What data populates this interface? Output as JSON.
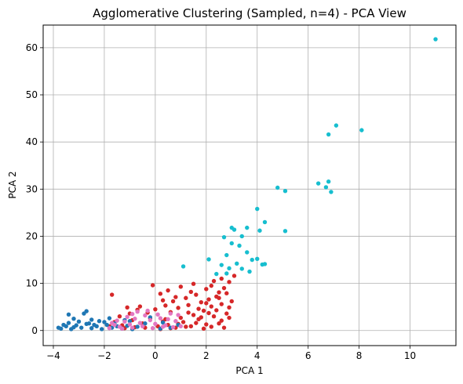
{
  "chart_data": {
    "type": "scatter",
    "title": "Agglomerative Clustering (Sampled, n=4) - PCA View",
    "xlabel": "PCA 1",
    "ylabel": "PCA 2",
    "xlim": [
      -4.4,
      11.8
    ],
    "ylim": [
      -3.2,
      64.8
    ],
    "xticks": [
      -4,
      -2,
      0,
      2,
      4,
      6,
      8,
      10
    ],
    "yticks": [
      0,
      10,
      20,
      30,
      40,
      50,
      60
    ],
    "grid": true,
    "series": [
      {
        "color": "#d62728",
        "points": [
          [
            0.2,
            0.3
          ],
          [
            0.5,
            1.2
          ],
          [
            0.8,
            0.6
          ],
          [
            1.1,
            1.8
          ],
          [
            1.4,
            0.9
          ],
          [
            1.7,
            2.4
          ],
          [
            2.0,
            1.3
          ],
          [
            2.3,
            3.0
          ],
          [
            1.9,
            4.2
          ],
          [
            2.6,
            2.1
          ],
          [
            2.8,
            3.6
          ],
          [
            2.2,
            5.1
          ],
          [
            1.5,
            3.3
          ],
          [
            1.0,
            2.7
          ],
          [
            0.6,
            3.9
          ],
          [
            0.3,
            1.9
          ],
          [
            -0.2,
            2.6
          ],
          [
            -0.5,
            1.5
          ],
          [
            -0.9,
            2.2
          ],
          [
            -1.3,
            1.1
          ],
          [
            -1.6,
            1.8
          ],
          [
            -1.8,
            0.9
          ],
          [
            0.9,
            4.8
          ],
          [
            1.3,
            5.4
          ],
          [
            1.8,
            6.0
          ],
          [
            2.1,
            6.6
          ],
          [
            2.4,
            7.2
          ],
          [
            2.5,
            8.1
          ],
          [
            2.7,
            9.0
          ],
          [
            2.9,
            10.3
          ],
          [
            3.1,
            11.6
          ],
          [
            2.6,
            11.0
          ],
          [
            2.3,
            10.5
          ],
          [
            2.0,
            8.8
          ],
          [
            1.6,
            7.6
          ],
          [
            1.2,
            6.9
          ],
          [
            0.7,
            6.2
          ],
          [
            0.4,
            5.3
          ],
          [
            0.0,
            4.5
          ],
          [
            -0.3,
            3.8
          ],
          [
            -0.7,
            4.4
          ],
          [
            -1.0,
            3.6
          ],
          [
            -1.4,
            3.0
          ],
          [
            -1.7,
            7.6
          ],
          [
            -0.1,
            9.6
          ],
          [
            0.2,
            7.8
          ],
          [
            0.5,
            8.5
          ],
          [
            1.0,
            9.3
          ],
          [
            1.5,
            9.9
          ],
          [
            2.2,
            9.5
          ],
          [
            2.8,
            7.9
          ],
          [
            3.0,
            6.2
          ],
          [
            2.9,
            4.9
          ],
          [
            2.6,
            5.6
          ],
          [
            2.4,
            4.3
          ],
          [
            2.1,
            3.7
          ],
          [
            1.8,
            2.8
          ],
          [
            1.6,
            1.6
          ],
          [
            1.2,
            0.8
          ],
          [
            0.9,
            1.4
          ],
          [
            0.6,
            0.5
          ],
          [
            0.4,
            2.4
          ],
          [
            0.1,
            0.9
          ],
          [
            -0.4,
            0.6
          ],
          [
            -0.8,
            0.7
          ],
          [
            -1.2,
            0.5
          ],
          [
            1.3,
            3.8
          ],
          [
            1.7,
            4.6
          ],
          [
            2.0,
            5.8
          ],
          [
            2.5,
            6.9
          ],
          [
            1.4,
            8.2
          ],
          [
            0.8,
            7.1
          ],
          [
            0.3,
            6.4
          ],
          [
            -0.6,
            5.1
          ],
          [
            -1.1,
            4.9
          ],
          [
            1.9,
            0.4
          ],
          [
            2.2,
            0.8
          ],
          [
            2.5,
            1.5
          ],
          [
            2.7,
            0.6
          ],
          [
            2.9,
            2.7
          ]
        ]
      },
      {
        "color": "#17becf",
        "points": [
          [
            11.0,
            61.8
          ],
          [
            7.1,
            43.5
          ],
          [
            8.1,
            42.5
          ],
          [
            6.8,
            41.6
          ],
          [
            4.8,
            30.3
          ],
          [
            5.1,
            29.6
          ],
          [
            6.4,
            31.2
          ],
          [
            6.7,
            30.4
          ],
          [
            6.8,
            31.6
          ],
          [
            6.9,
            29.4
          ],
          [
            4.0,
            25.8
          ],
          [
            4.3,
            23.0
          ],
          [
            4.1,
            21.2
          ],
          [
            5.1,
            21.1
          ],
          [
            3.0,
            21.8
          ],
          [
            3.1,
            21.4
          ],
          [
            3.6,
            21.8
          ],
          [
            3.4,
            20.0
          ],
          [
            2.7,
            19.8
          ],
          [
            3.0,
            18.5
          ],
          [
            3.3,
            18.0
          ],
          [
            3.6,
            16.6
          ],
          [
            2.8,
            16.0
          ],
          [
            4.0,
            15.2
          ],
          [
            3.8,
            15.0
          ],
          [
            2.1,
            15.1
          ],
          [
            2.6,
            13.9
          ],
          [
            3.2,
            14.2
          ],
          [
            3.4,
            13.1
          ],
          [
            3.7,
            12.5
          ],
          [
            4.2,
            14.0
          ],
          [
            4.3,
            14.1
          ],
          [
            1.1,
            13.6
          ],
          [
            2.8,
            12.1
          ],
          [
            2.4,
            12.0
          ],
          [
            2.9,
            13.2
          ]
        ]
      },
      {
        "color": "#1f77b4",
        "points": [
          [
            -3.7,
            0.4
          ],
          [
            -3.5,
            0.9
          ],
          [
            -3.3,
            0.3
          ],
          [
            -3.1,
            1.1
          ],
          [
            -2.9,
            0.6
          ],
          [
            -2.7,
            1.4
          ],
          [
            -2.5,
            0.5
          ],
          [
            -2.3,
            0.9
          ],
          [
            -2.1,
            0.3
          ],
          [
            -1.9,
            1.2
          ],
          [
            -1.7,
            0.6
          ],
          [
            -1.5,
            0.9
          ],
          [
            -1.3,
            0.4
          ],
          [
            -1.1,
            1.0
          ],
          [
            -0.9,
            0.3
          ],
          [
            -0.7,
            0.8
          ],
          [
            -3.4,
            3.4
          ],
          [
            -2.7,
            4.1
          ],
          [
            -2.8,
            3.6
          ],
          [
            -2.5,
            2.3
          ],
          [
            -2.2,
            2.0
          ],
          [
            -3.2,
            2.5
          ],
          [
            -3.0,
            1.9
          ],
          [
            -1.8,
            2.6
          ],
          [
            -1.2,
            2.2
          ],
          [
            -2.0,
            1.8
          ],
          [
            -2.6,
            1.5
          ],
          [
            -3.6,
            1.2
          ],
          [
            -3.2,
            0.7
          ],
          [
            -0.4,
            1.5
          ],
          [
            0.2,
            0.4
          ],
          [
            0.6,
            0.6
          ],
          [
            0.9,
            1.2
          ],
          [
            0.3,
            1.7
          ],
          [
            -0.2,
            2.8
          ],
          [
            -3.8,
            0.6
          ],
          [
            -3.4,
            1.6
          ],
          [
            -2.4,
            1.2
          ],
          [
            -1.6,
            1.5
          ],
          [
            -1.0,
            2.0
          ]
        ]
      },
      {
        "color": "#e377c2",
        "points": [
          [
            -1.8,
            0.5
          ],
          [
            -1.6,
            1.2
          ],
          [
            -1.4,
            0.8
          ],
          [
            -1.2,
            1.9
          ],
          [
            -1.0,
            1.3
          ],
          [
            -0.8,
            2.5
          ],
          [
            -0.6,
            1.6
          ],
          [
            -0.4,
            3.2
          ],
          [
            -0.2,
            2.2
          ],
          [
            0.0,
            1.4
          ],
          [
            0.2,
            2.6
          ],
          [
            0.4,
            1.1
          ],
          [
            0.6,
            3.6
          ],
          [
            0.8,
            2.0
          ],
          [
            -1.1,
            2.9
          ],
          [
            -0.7,
            4.0
          ],
          [
            -0.3,
            4.2
          ],
          [
            0.1,
            3.4
          ],
          [
            0.5,
            2.4
          ],
          [
            -1.5,
            2.1
          ],
          [
            -1.3,
            0.4
          ],
          [
            -0.9,
            0.6
          ],
          [
            -0.5,
            0.9
          ],
          [
            -0.1,
            0.5
          ],
          [
            0.3,
            0.8
          ],
          [
            0.7,
            0.7
          ],
          [
            1.0,
            0.9
          ],
          [
            -0.9,
            3.5
          ],
          [
            -1.7,
            1.6
          ],
          [
            0.9,
            3.3
          ]
        ]
      }
    ]
  }
}
